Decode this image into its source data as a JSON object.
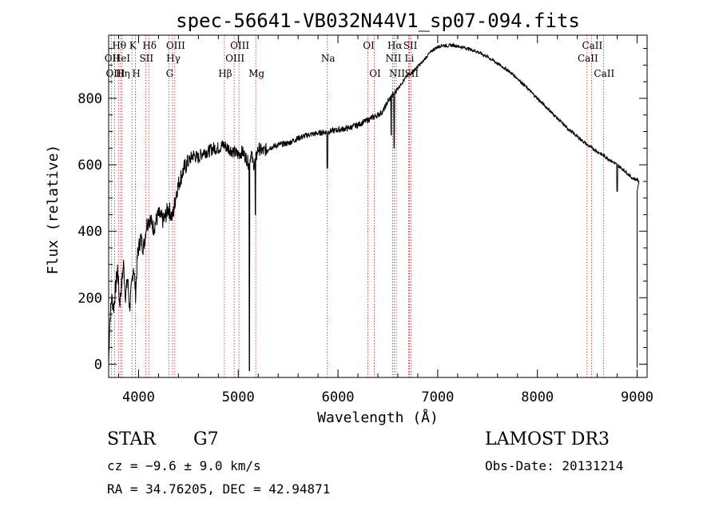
{
  "chart_data": {
    "type": "line",
    "title": "spec-56641-VB032N44V1_sp07-094.fits",
    "xlabel": "Wavelength (Å)",
    "ylabel": "Flux (relative)",
    "xlim": [
      3700,
      9100
    ],
    "ylim": [
      -40,
      990
    ],
    "xticks": [
      4000,
      5000,
      6000,
      7000,
      8000,
      9000
    ],
    "yticks": [
      0,
      200,
      400,
      600,
      800
    ],
    "x_minor_step": 200,
    "y_minor_step": 50,
    "series": [
      {
        "name": "flux",
        "points": [
          [
            3700,
            0
          ],
          [
            3710,
            120
          ],
          [
            3730,
            200
          ],
          [
            3750,
            170
          ],
          [
            3770,
            230
          ],
          [
            3790,
            290
          ],
          [
            3810,
            180
          ],
          [
            3830,
            240
          ],
          [
            3850,
            300
          ],
          [
            3870,
            200
          ],
          [
            3890,
            260
          ],
          [
            3910,
            170
          ],
          [
            3930,
            230
          ],
          [
            3950,
            300
          ],
          [
            3970,
            210
          ],
          [
            3990,
            330
          ],
          [
            4020,
            380
          ],
          [
            4050,
            350
          ],
          [
            4080,
            420
          ],
          [
            4110,
            440
          ],
          [
            4150,
            410
          ],
          [
            4200,
            450
          ],
          [
            4250,
            430
          ],
          [
            4300,
            470
          ],
          [
            4340,
            440
          ],
          [
            4380,
            520
          ],
          [
            4420,
            560
          ],
          [
            4460,
            590
          ],
          [
            4500,
            610
          ],
          [
            4550,
            630
          ],
          [
            4600,
            620
          ],
          [
            4650,
            640
          ],
          [
            4700,
            640
          ],
          [
            4750,
            650
          ],
          [
            4800,
            650
          ],
          [
            4850,
            660
          ],
          [
            4900,
            650
          ],
          [
            4950,
            640
          ],
          [
            5000,
            630
          ],
          [
            5040,
            640
          ],
          [
            5080,
            620
          ],
          [
            5110,
            600
          ],
          [
            5130,
            640
          ],
          [
            5150,
            600
          ],
          [
            5170,
            610
          ],
          [
            5200,
            650
          ],
          [
            5250,
            640
          ],
          [
            5300,
            650
          ],
          [
            5400,
            660
          ],
          [
            5500,
            665
          ],
          [
            5600,
            680
          ],
          [
            5700,
            690
          ],
          [
            5800,
            695
          ],
          [
            5900,
            700
          ],
          [
            6000,
            705
          ],
          [
            6100,
            710
          ],
          [
            6200,
            720
          ],
          [
            6300,
            735
          ],
          [
            6400,
            750
          ],
          [
            6450,
            760
          ],
          [
            6500,
            790
          ],
          [
            6550,
            810
          ],
          [
            6600,
            830
          ],
          [
            6650,
            850
          ],
          [
            6700,
            870
          ],
          [
            6750,
            880
          ],
          [
            6800,
            895
          ],
          [
            6850,
            910
          ],
          [
            6900,
            930
          ],
          [
            6950,
            945
          ],
          [
            7000,
            955
          ],
          [
            7050,
            960
          ],
          [
            7100,
            958
          ],
          [
            7150,
            960
          ],
          [
            7200,
            957
          ],
          [
            7300,
            950
          ],
          [
            7400,
            940
          ],
          [
            7500,
            925
          ],
          [
            7600,
            905
          ],
          [
            7700,
            885
          ],
          [
            7800,
            860
          ],
          [
            7900,
            830
          ],
          [
            8000,
            800
          ],
          [
            8100,
            770
          ],
          [
            8200,
            740
          ],
          [
            8300,
            710
          ],
          [
            8400,
            685
          ],
          [
            8500,
            660
          ],
          [
            8600,
            640
          ],
          [
            8700,
            620
          ],
          [
            8800,
            600
          ],
          [
            8900,
            575
          ],
          [
            8950,
            560
          ],
          [
            9000,
            555
          ],
          [
            9020,
            550
          ]
        ],
        "dips": [
          [
            5112,
            -20
          ],
          [
            5172,
            450
          ],
          [
            5893,
            590
          ],
          [
            6563,
            650
          ],
          [
            6533,
            690
          ],
          [
            8800,
            520
          ]
        ]
      }
    ],
    "lines": [
      {
        "label": "Hθ",
        "wl": 3798,
        "row": 1
      },
      {
        "label": "OII",
        "wl": 3727,
        "row": 2
      },
      {
        "label": "OIII",
        "wl": 3760,
        "row": 3
      },
      {
        "label": "HeI",
        "wl": 3820,
        "row": 2
      },
      {
        "label": "Hη",
        "wl": 3835,
        "row": 3
      },
      {
        "label": "K",
        "wl": 3934,
        "row": 1
      },
      {
        "label": "SII",
        "wl": 4071,
        "row": 2
      },
      {
        "label": "H",
        "wl": 3969,
        "row": 3
      },
      {
        "label": "Hδ",
        "wl": 4102,
        "row": 1
      },
      {
        "label": "OIII",
        "wl": 4364,
        "row": 1
      },
      {
        "label": "Hγ",
        "wl": 4341,
        "row": 2
      },
      {
        "label": "G",
        "wl": 4304,
        "row": 3
      },
      {
        "label": "Hβ",
        "wl": 4861,
        "row": 3
      },
      {
        "label": "OIII",
        "wl": 5007,
        "row": 1
      },
      {
        "label": "OIII",
        "wl": 4959,
        "row": 2
      },
      {
        "label": "Mg",
        "wl": 5175,
        "row": 3
      },
      {
        "label": "Na",
        "wl": 5893,
        "row": 2
      },
      {
        "label": "OI",
        "wl": 6300,
        "row": 1
      },
      {
        "label": "OI",
        "wl": 6364,
        "row": 3
      },
      {
        "label": "Hα",
        "wl": 6563,
        "row": 1
      },
      {
        "label": "NII",
        "wl": 6548,
        "row": 2
      },
      {
        "label": "NII",
        "wl": 6584,
        "row": 3
      },
      {
        "label": "SII",
        "wl": 6717,
        "row": 1
      },
      {
        "label": "Li",
        "wl": 6708,
        "row": 2
      },
      {
        "label": "SII",
        "wl": 6731,
        "row": 3
      },
      {
        "label": "CaII",
        "wl": 8542,
        "row": 1
      },
      {
        "label": "CaII",
        "wl": 8498,
        "row": 2
      },
      {
        "label": "CaII",
        "wl": 8662,
        "row": 3
      }
    ],
    "grid": false
  },
  "info": {
    "object_class": "STAR",
    "subclass": "G7",
    "survey": "LAMOST DR3",
    "cz": "cz = −9.6 ± 9.0 km/s",
    "obs_date": "Obs-Date: 20131214",
    "coords": "RA =  34.76205, DEC =  42.94871"
  },
  "colors": {
    "line": "#000000",
    "marker": "#cc2222",
    "background": "#ffffff"
  }
}
